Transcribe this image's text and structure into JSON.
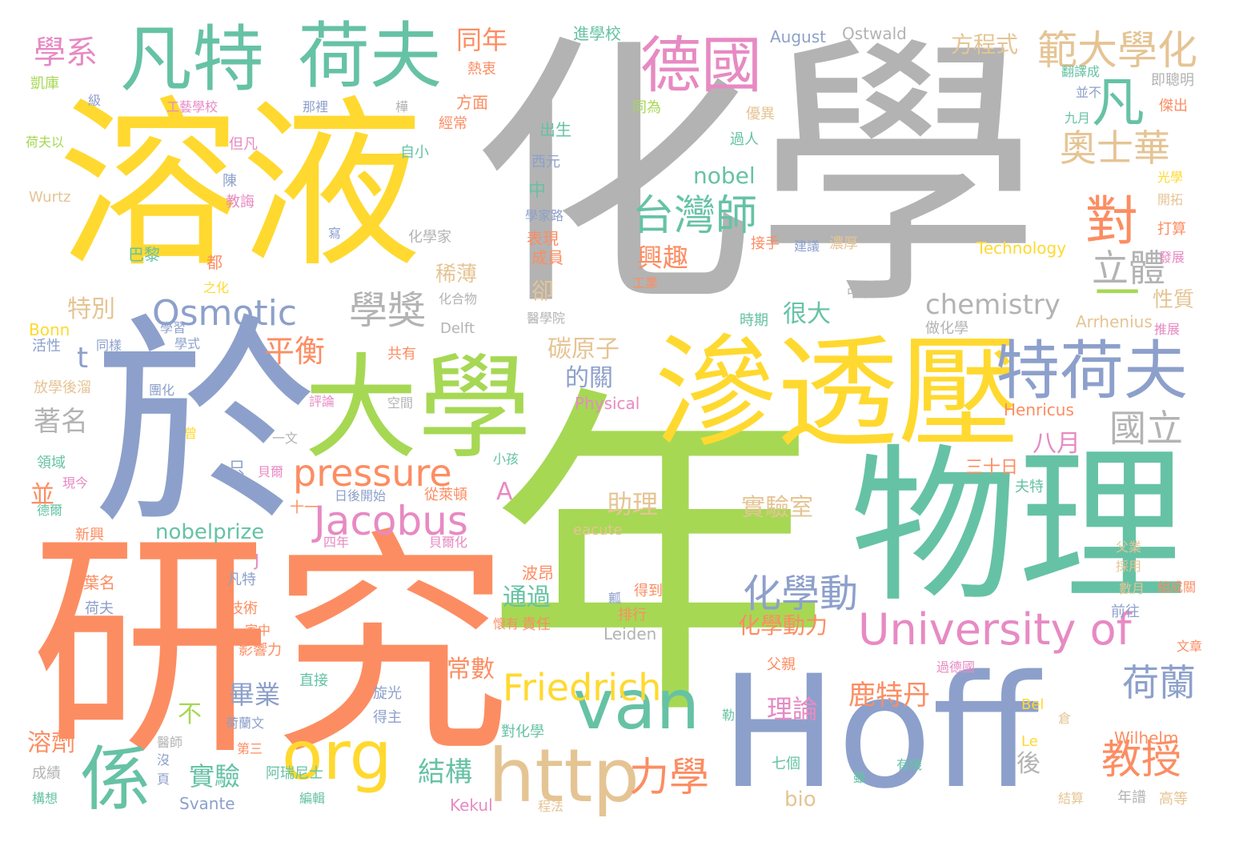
{
  "words": [
    {
      "text": "化學",
      "color": "#b3b3b3",
      "weight": 1.0
    },
    {
      "text": "年",
      "color": "#a6d854",
      "weight": 0.98
    },
    {
      "text": "研究",
      "color": "#fc8d62",
      "weight": 0.85
    },
    {
      "text": "於",
      "color": "#8da0cb",
      "weight": 0.83
    },
    {
      "text": "溶液",
      "color": "#ffd92f",
      "weight": 0.7
    },
    {
      "text": "Hoff",
      "color": "#8da0cb",
      "weight": 0.66
    },
    {
      "text": "物理",
      "color": "#66c2a5",
      "weight": 0.6
    },
    {
      "text": "滲透壓",
      "color": "#ffd92f",
      "weight": 0.5
    },
    {
      "text": "大學",
      "color": "#a6d854",
      "weight": 0.46
    },
    {
      "text": "凡特",
      "color": "#66c2a5",
      "weight": 0.3
    },
    {
      "text": "荷夫",
      "color": "#66c2a5",
      "weight": 0.3
    },
    {
      "text": "http",
      "color": "#e5c494",
      "weight": 0.3
    },
    {
      "text": "van",
      "color": "#66c2a5",
      "weight": 0.3
    },
    {
      "text": "特荷夫",
      "color": "#8da0cb",
      "weight": 0.3
    },
    {
      "text": "係",
      "color": "#66c2a5",
      "weight": 0.3
    },
    {
      "text": "org",
      "color": "#ffd92f",
      "weight": 0.28
    },
    {
      "text": "德國",
      "color": "#e78ac3",
      "weight": 0.25
    },
    {
      "text": "University of",
      "color": "#e78ac3",
      "weight": 0.22
    },
    {
      "text": "對",
      "color": "#fc8d62",
      "weight": 0.22
    },
    {
      "text": "凡",
      "color": "#66c2a5",
      "weight": 0.22
    },
    {
      "text": "一",
      "color": "#a6d854",
      "weight": 0.22
    },
    {
      "text": "範大學化",
      "color": "#e5c494",
      "weight": 0.2
    },
    {
      "text": "Osmotic",
      "color": "#8da0cb",
      "weight": 0.2
    },
    {
      "text": "Jacobus",
      "color": "#e78ac3",
      "weight": 0.2
    },
    {
      "text": "pressure",
      "color": "#fc8d62",
      "weight": 0.2
    },
    {
      "text": "Friedrich",
      "color": "#ffd92f",
      "weight": 0.2
    },
    {
      "text": "台灣師",
      "color": "#66c2a5",
      "weight": 0.18
    },
    {
      "text": "學獎",
      "color": "#b3b3b3",
      "weight": 0.18
    },
    {
      "text": "化學動",
      "color": "#8da0cb",
      "weight": 0.18
    },
    {
      "text": "力學",
      "color": "#fc8d62",
      "weight": 0.18
    },
    {
      "text": "教授",
      "color": "#fc8d62",
      "weight": 0.18
    },
    {
      "text": "奧士華",
      "color": "#e5c494",
      "weight": 0.16
    },
    {
      "text": "立體",
      "color": "#b3b3b3",
      "weight": 0.16
    },
    {
      "text": "荷蘭",
      "color": "#8da0cb",
      "weight": 0.16
    },
    {
      "text": "國立",
      "color": "#b3b3b3",
      "weight": 0.16
    },
    {
      "text": "學系",
      "color": "#e78ac3",
      "weight": 0.15
    },
    {
      "text": "平衡",
      "color": "#fc8d62",
      "weight": 0.14
    },
    {
      "text": "chemistry",
      "color": "#b3b3b3",
      "weight": 0.13
    },
    {
      "text": "鹿特丹",
      "color": "#fc8d62",
      "weight": 0.13
    },
    {
      "text": "結構",
      "color": "#66c2a5",
      "weight": 0.13
    },
    {
      "text": "著名",
      "color": "#b3b3b3",
      "weight": 0.13
    },
    {
      "text": "畢業",
      "color": "#8da0cb",
      "weight": 0.12
    },
    {
      "text": "實驗",
      "color": "#66c2a5",
      "weight": 0.12
    },
    {
      "text": "同年",
      "color": "#fc8d62",
      "weight": 0.12
    },
    {
      "text": "興趣",
      "color": "#fc8d62",
      "weight": 0.12
    },
    {
      "text": "nobel",
      "color": "#66c2a5",
      "weight": 0.11
    },
    {
      "text": "八月",
      "color": "#e78ac3",
      "weight": 0.11
    },
    {
      "text": "碳原子",
      "color": "#e5c494",
      "weight": 0.11
    },
    {
      "text": "實驗室",
      "color": "#e5c494",
      "weight": 0.11
    },
    {
      "text": "助理",
      "color": "#e5c494",
      "weight": 0.11
    },
    {
      "text": "理論",
      "color": "#e78ac3",
      "weight": 0.11
    },
    {
      "text": "方程式",
      "color": "#e5c494",
      "weight": 0.11
    },
    {
      "text": "特別",
      "color": "#e5c494",
      "weight": 0.11
    },
    {
      "text": "很大",
      "color": "#66c2a5",
      "weight": 0.11
    },
    {
      "text": "nobelprize",
      "color": "#66c2a5",
      "weight": 0.1
    },
    {
      "text": "通過",
      "color": "#66c2a5",
      "weight": 0.1
    },
    {
      "text": "化學動力",
      "color": "#fc8d62",
      "weight": 0.1
    },
    {
      "text": "常數",
      "color": "#fc8d62",
      "weight": 0.1
    },
    {
      "text": "溶劑",
      "color": "#fc8d62",
      "weight": 0.1
    },
    {
      "text": "不",
      "color": "#a6d854",
      "weight": 0.1
    },
    {
      "text": "後",
      "color": "#b3b3b3",
      "weight": 0.1
    },
    {
      "text": "並",
      "color": "#fc8d62",
      "weight": 0.1
    },
    {
      "text": "A",
      "color": "#e78ac3",
      "weight": 0.1
    },
    {
      "text": "t",
      "color": "#8da0cb",
      "weight": 0.1
    },
    {
      "text": "的關",
      "color": "#8da0cb",
      "weight": 0.09
    },
    {
      "text": "稀薄",
      "color": "#e5c494",
      "weight": 0.09
    },
    {
      "text": "卻",
      "color": "#e5c494",
      "weight": 0.09
    },
    {
      "text": "性質",
      "color": "#e5c494",
      "weight": 0.09
    },
    {
      "text": "bio",
      "color": "#e5c494",
      "weight": 0.09
    },
    {
      "text": "三十日",
      "color": "#fc8d62",
      "weight": 0.08
    },
    {
      "text": "表現",
      "color": "#fc8d62",
      "weight": 0.08
    },
    {
      "text": "出生",
      "color": "#66c2a5",
      "weight": 0.08
    },
    {
      "text": "August",
      "color": "#8da0cb",
      "weight": 0.08
    },
    {
      "text": "Ostwald",
      "color": "#b3b3b3",
      "weight": 0.08
    },
    {
      "text": "進學校",
      "color": "#66c2a5",
      "weight": 0.07
    },
    {
      "text": "熱衷",
      "color": "#fc8d62",
      "weight": 0.07
    },
    {
      "text": "方面",
      "color": "#fc8d62",
      "weight": 0.07
    },
    {
      "text": "經常",
      "color": "#fc8d62",
      "weight": 0.07
    },
    {
      "text": "自小",
      "color": "#66c2a5",
      "weight": 0.07
    },
    {
      "text": "西元",
      "color": "#8da0cb",
      "weight": 0.07
    },
    {
      "text": "中",
      "color": "#66c2a5",
      "weight": 0.07
    },
    {
      "text": "學家路",
      "color": "#8da0cb",
      "weight": 0.06
    },
    {
      "text": "成員",
      "color": "#fc8d62",
      "weight": 0.07
    },
    {
      "text": "化學家",
      "color": "#b3b3b3",
      "weight": 0.07
    },
    {
      "text": "化合物",
      "color": "#b3b3b3",
      "weight": 0.06
    },
    {
      "text": "醫學院",
      "color": "#b3b3b3",
      "weight": 0.06
    },
    {
      "text": "Delft",
      "color": "#b3b3b3",
      "weight": 0.07
    },
    {
      "text": "共有",
      "color": "#fc8d62",
      "weight": 0.07
    },
    {
      "text": "空間",
      "color": "#b3b3b3",
      "weight": 0.06
    },
    {
      "text": "Physical",
      "color": "#e78ac3",
      "weight": 0.07
    },
    {
      "text": "小孩",
      "color": "#66c2a5",
      "weight": 0.06
    },
    {
      "text": "日後開始",
      "color": "#8da0cb",
      "weight": 0.06
    },
    {
      "text": "從萊頓",
      "color": "#fc8d62",
      "weight": 0.07
    },
    {
      "text": "四年",
      "color": "#e78ac3",
      "weight": 0.06
    },
    {
      "text": "貝爾化",
      "color": "#e78ac3",
      "weight": 0.06
    },
    {
      "text": "波昂",
      "color": "#fc8d62",
      "weight": 0.07
    },
    {
      "text": "懷有",
      "color": "#fc8d62",
      "weight": 0.06
    },
    {
      "text": "責任",
      "color": "#fc8d62",
      "weight": 0.06
    },
    {
      "text": "旋光",
      "color": "#8da0cb",
      "weight": 0.06
    },
    {
      "text": "得主",
      "color": "#8da0cb",
      "weight": 0.06
    },
    {
      "text": "對化學",
      "color": "#66c2a5",
      "weight": 0.06
    },
    {
      "text": "得到",
      "color": "#fc8d62",
      "weight": 0.06
    },
    {
      "text": "排行",
      "color": "#fc8d62",
      "weight": 0.06
    },
    {
      "text": "Leiden",
      "color": "#b3b3b3",
      "weight": 0.07
    },
    {
      "text": "eacute",
      "color": "#e5c494",
      "weight": 0.07
    },
    {
      "text": "Technology",
      "color": "#ffd92f",
      "weight": 0.07
    },
    {
      "text": "Arrhenius",
      "color": "#e5c494",
      "weight": 0.07
    },
    {
      "text": "Henricus",
      "color": "#fc8d62",
      "weight": 0.07
    },
    {
      "text": "Wilhelm",
      "color": "#fc8d62",
      "weight": 0.07
    },
    {
      "text": "Svante",
      "color": "#8da0cb",
      "weight": 0.07
    },
    {
      "text": "Kekul",
      "color": "#e78ac3",
      "weight": 0.07
    },
    {
      "text": "Bonn",
      "color": "#ffd92f",
      "weight": 0.07
    },
    {
      "text": "Wurtz",
      "color": "#e5c494",
      "weight": 0.06
    },
    {
      "text": "Bel",
      "color": "#ffd92f",
      "weight": 0.06
    },
    {
      "text": "Le",
      "color": "#ffd92f",
      "weight": 0.06
    },
    {
      "text": "J",
      "color": "#e78ac3",
      "weight": 0.07
    },
    {
      "text": "凱庫",
      "color": "#a6d854",
      "weight": 0.06
    },
    {
      "text": "級",
      "color": "#8da0cb",
      "weight": 0.06
    },
    {
      "text": "工藝學校",
      "color": "#e78ac3",
      "weight": 0.06
    },
    {
      "text": "那裡",
      "color": "#8da0cb",
      "weight": 0.06
    },
    {
      "text": "樺",
      "color": "#b3b3b3",
      "weight": 0.06
    },
    {
      "text": "荷夫以",
      "color": "#a6d854",
      "weight": 0.06
    },
    {
      "text": "但凡",
      "color": "#e78ac3",
      "weight": 0.06
    },
    {
      "text": "陳",
      "color": "#8da0cb",
      "weight": 0.06
    },
    {
      "text": "教誨",
      "color": "#e78ac3",
      "weight": 0.06
    },
    {
      "text": "寫",
      "color": "#8da0cb",
      "weight": 0.05
    },
    {
      "text": "巴黎",
      "color": "#66c2a5",
      "weight": 0.06
    },
    {
      "text": "都",
      "color": "#fc8d62",
      "weight": 0.06
    },
    {
      "text": "之化",
      "color": "#ffd92f",
      "weight": 0.05
    },
    {
      "text": "學習",
      "color": "#8da0cb",
      "weight": 0.05
    },
    {
      "text": "同樣",
      "color": "#8da0cb",
      "weight": 0.05
    },
    {
      "text": "學式",
      "color": "#8da0cb",
      "weight": 0.05
    },
    {
      "text": "活性",
      "color": "#8da0cb",
      "weight": 0.06
    },
    {
      "text": "放學後溜",
      "color": "#e5c494",
      "weight": 0.06
    },
    {
      "text": "團化",
      "color": "#8da0cb",
      "weight": 0.05
    },
    {
      "text": "評論",
      "color": "#e78ac3",
      "weight": 0.05
    },
    {
      "text": "曾",
      "color": "#ffd92f",
      "weight": 0.05
    },
    {
      "text": "一文",
      "color": "#b3b3b3",
      "weight": 0.05
    },
    {
      "text": "領域",
      "color": "#66c2a5",
      "weight": 0.06
    },
    {
      "text": "現今",
      "color": "#e78ac3",
      "weight": 0.05
    },
    {
      "text": "只",
      "color": "#8da0cb",
      "weight": 0.06
    },
    {
      "text": "貝爾",
      "color": "#e78ac3",
      "weight": 0.05
    },
    {
      "text": "十一",
      "color": "#fc8d62",
      "weight": 0.06
    },
    {
      "text": "德爾",
      "color": "#66c2a5",
      "weight": 0.05
    },
    {
      "text": "新興",
      "color": "#fc8d62",
      "weight": 0.06
    },
    {
      "text": "葉名",
      "color": "#fc8d62",
      "weight": 0.06
    },
    {
      "text": "凡特",
      "color": "#8da0cb",
      "weight": 0.06
    },
    {
      "text": "荷夫",
      "color": "#8da0cb",
      "weight": 0.06
    },
    {
      "text": "技術",
      "color": "#fc8d62",
      "weight": 0.06
    },
    {
      "text": "家中",
      "color": "#fc8d62",
      "weight": 0.05
    },
    {
      "text": "影響力",
      "color": "#fc8d62",
      "weight": 0.06
    },
    {
      "text": "直接",
      "color": "#66c2a5",
      "weight": 0.06
    },
    {
      "text": "荷蘭文",
      "color": "#8da0cb",
      "weight": 0.05
    },
    {
      "text": "第三",
      "color": "#fc8d62",
      "weight": 0.05
    },
    {
      "text": "醫師",
      "color": "#b3b3b3",
      "weight": 0.05
    },
    {
      "text": "沒",
      "color": "#8da0cb",
      "weight": 0.05
    },
    {
      "text": "頁",
      "color": "#8da0cb",
      "weight": 0.05
    },
    {
      "text": "阿瑞尼士",
      "color": "#66c2a5",
      "weight": 0.06
    },
    {
      "text": "編輯",
      "color": "#66c2a5",
      "weight": 0.05
    },
    {
      "text": "成績",
      "color": "#b3b3b3",
      "weight": 0.06
    },
    {
      "text": "構想",
      "color": "#66c2a5",
      "weight": 0.05
    },
    {
      "text": "瓤",
      "color": "#8da0cb",
      "weight": 0.05
    },
    {
      "text": "勒",
      "color": "#66c2a5",
      "weight": 0.05
    },
    {
      "text": "七個",
      "color": "#66c2a5",
      "weight": 0.06
    },
    {
      "text": "雖",
      "color": "#66c2a5",
      "weight": 0.05
    },
    {
      "text": "程法",
      "color": "#e5c494",
      "weight": 0.05
    },
    {
      "text": "有機",
      "color": "#66c2a5",
      "weight": 0.05
    },
    {
      "text": "父親",
      "color": "#fc8d62",
      "weight": 0.06
    },
    {
      "text": "倉",
      "color": "#e5c494",
      "weight": 0.05
    },
    {
      "text": "結算",
      "color": "#e5c494",
      "weight": 0.05
    },
    {
      "text": "過德國",
      "color": "#e78ac3",
      "weight": 0.05
    },
    {
      "text": "夫特",
      "color": "#66c2a5",
      "weight": 0.06
    },
    {
      "text": "父業",
      "color": "#e5c494",
      "weight": 0.05
    },
    {
      "text": "採用",
      "color": "#e5c494",
      "weight": 0.05
    },
    {
      "text": "數月",
      "color": "#e5c494",
      "weight": 0.05
    },
    {
      "text": "前往",
      "color": "#8da0cb",
      "weight": 0.06
    },
    {
      "text": "組成關",
      "color": "#fc8d62",
      "weight": 0.05
    },
    {
      "text": "文章",
      "color": "#fc8d62",
      "weight": 0.05
    },
    {
      "text": "年譜",
      "color": "#b3b3b3",
      "weight": 0.06
    },
    {
      "text": "高等",
      "color": "#e5c494",
      "weight": 0.06
    },
    {
      "text": "翻譯成",
      "color": "#66c2a5",
      "weight": 0.05
    },
    {
      "text": "即聰明",
      "color": "#b3b3b3",
      "weight": 0.06
    },
    {
      "text": "並不",
      "color": "#8da0cb",
      "weight": 0.05
    },
    {
      "text": "九月",
      "color": "#66c2a5",
      "weight": 0.05
    },
    {
      "text": "傑出",
      "color": "#fc8d62",
      "weight": 0.06
    },
    {
      "text": "同為",
      "color": "#a6d854",
      "weight": 0.06
    },
    {
      "text": "優異",
      "color": "#e5c494",
      "weight": 0.06
    },
    {
      "text": "過人",
      "color": "#66c2a5",
      "weight": 0.06
    },
    {
      "text": "光學",
      "color": "#ffd92f",
      "weight": 0.05
    },
    {
      "text": "開拓",
      "color": "#e5c494",
      "weight": 0.05
    },
    {
      "text": "打算",
      "color": "#fc8d62",
      "weight": 0.06
    },
    {
      "text": "接手",
      "color": "#fc8d62",
      "weight": 0.06
    },
    {
      "text": "建議",
      "color": "#8da0cb",
      "weight": 0.05
    },
    {
      "text": "濃厚",
      "color": "#e5c494",
      "weight": 0.06
    },
    {
      "text": "發展",
      "color": "#e78ac3",
      "weight": 0.05
    },
    {
      "text": "工業",
      "color": "#fc8d62",
      "weight": 0.05
    },
    {
      "text": "中學",
      "color": "#b3b3b3",
      "weight": 0.05
    },
    {
      "text": "做化學",
      "color": "#b3b3b3",
      "weight": 0.06
    },
    {
      "text": "時期",
      "color": "#66c2a5",
      "weight": 0.06
    },
    {
      "text": "推展",
      "color": "#e78ac3",
      "weight": 0.05
    }
  ]
}
